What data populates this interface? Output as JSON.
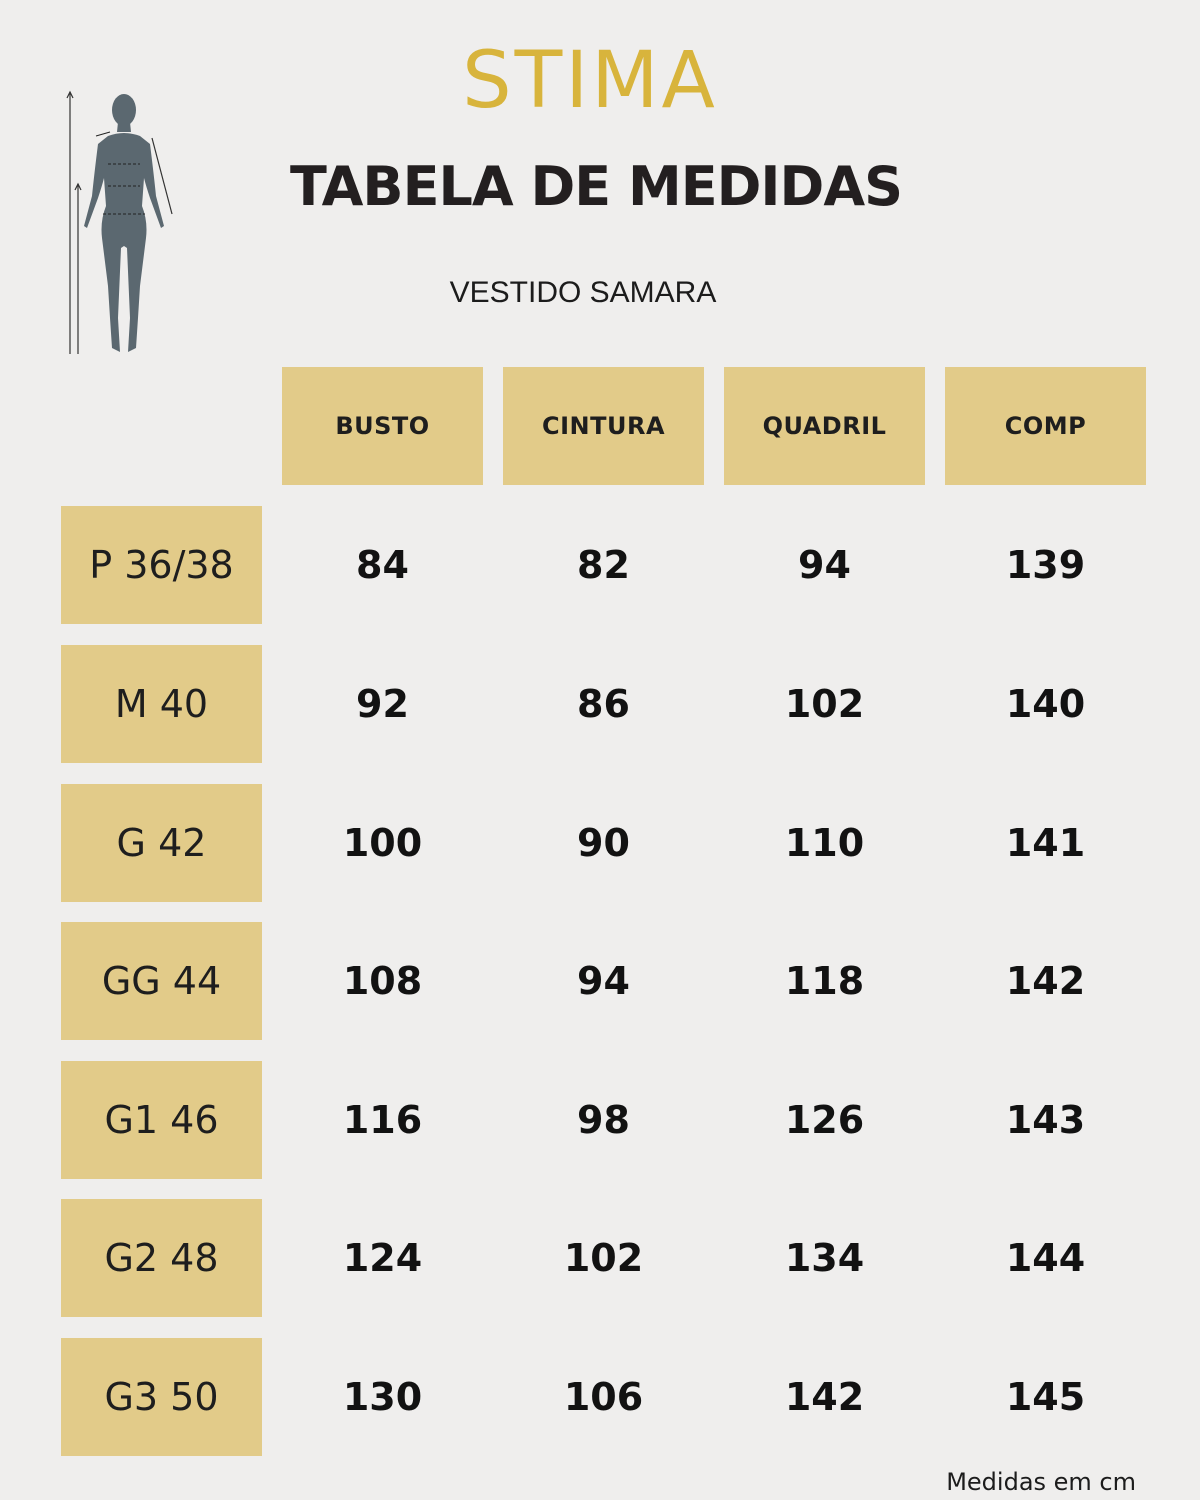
{
  "brand": {
    "logo_text": "STIMA"
  },
  "header": {
    "title": "TABELA DE MEDIDAS",
    "subtitle": "VESTIDO SAMARA"
  },
  "colors": {
    "brand_gold": "#d8b43c",
    "cell_gold": "#e2cb89",
    "background": "#efeeed",
    "figure": "#5b6870"
  },
  "table": {
    "columns": [
      "BUSTO",
      "CINTURA",
      "QUADRIL",
      "COMP"
    ],
    "rows": [
      {
        "size": "P 36/38",
        "values": [
          "84",
          "82",
          "94",
          "139"
        ]
      },
      {
        "size": "M 40",
        "values": [
          "92",
          "86",
          "102",
          "140"
        ]
      },
      {
        "size": "G 42",
        "values": [
          "100",
          "90",
          "110",
          "141"
        ]
      },
      {
        "size": "GG 44",
        "values": [
          "108",
          "94",
          "118",
          "142"
        ]
      },
      {
        "size": "G1 46",
        "values": [
          "116",
          "98",
          "126",
          "143"
        ]
      },
      {
        "size": "G2 48",
        "values": [
          "124",
          "102",
          "134",
          "144"
        ]
      },
      {
        "size": "G3 50",
        "values": [
          "130",
          "106",
          "142",
          "145"
        ]
      }
    ]
  },
  "footer": {
    "note": "Medidas em cm"
  },
  "icons": {
    "figure": "body-measurement-icon"
  }
}
